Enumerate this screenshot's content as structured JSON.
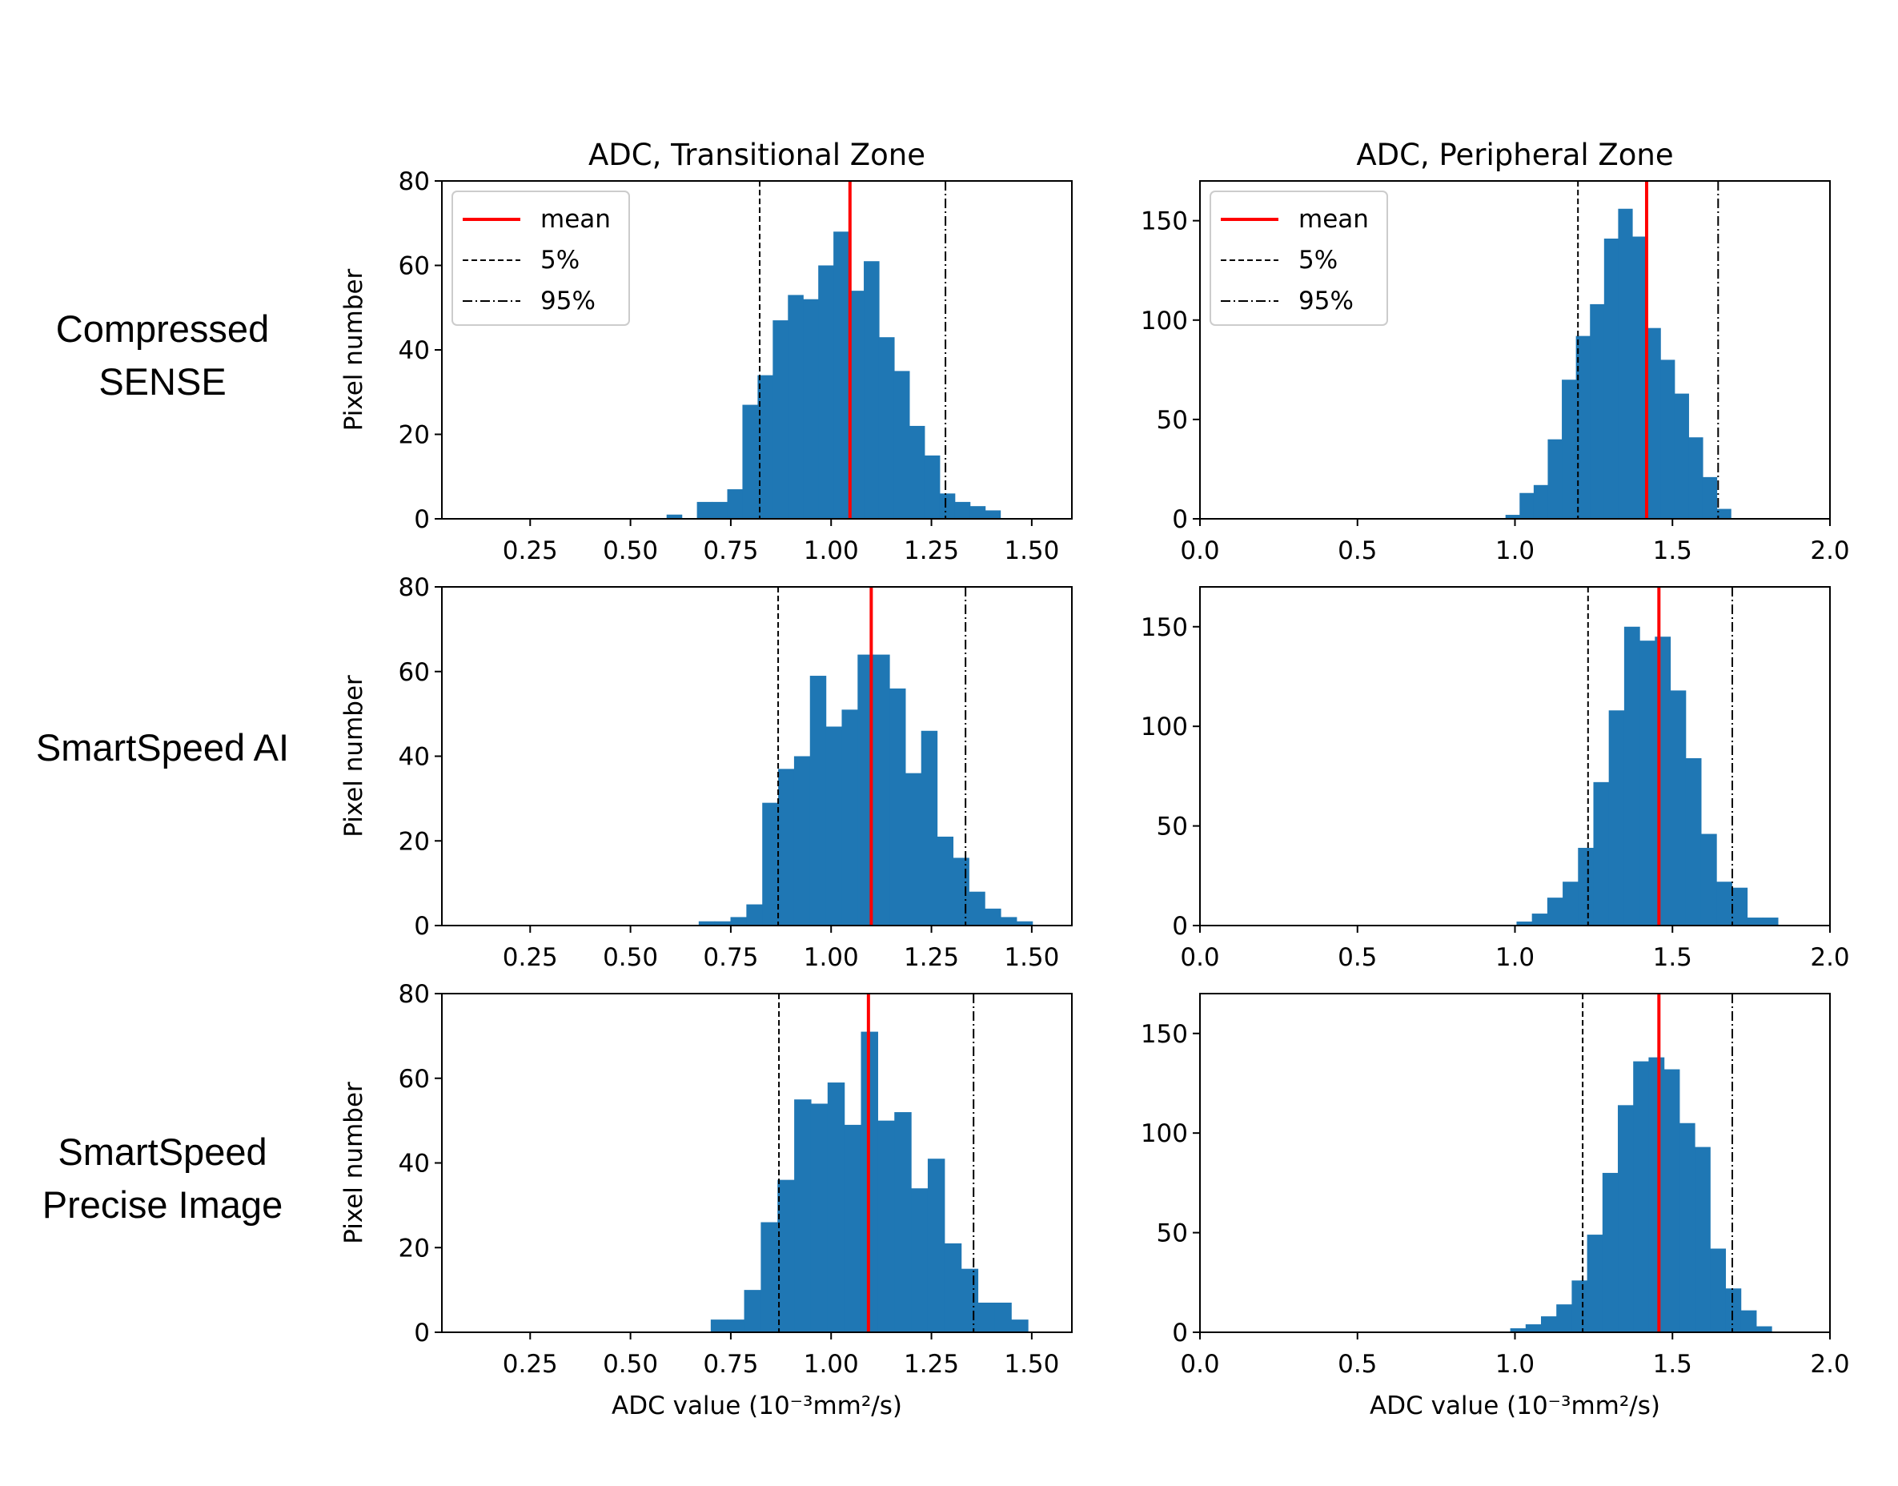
{
  "row_labels": [
    [
      "Compressed",
      "SENSE"
    ],
    [
      "SmartSpeed AI"
    ],
    [
      "SmartSpeed",
      "Precise Image"
    ]
  ],
  "legend": {
    "mean": "mean",
    "p5": "5%",
    "p95": "95%"
  },
  "colors": {
    "bar": "#1f77b4",
    "mean": "#ff0000",
    "percentile": "#000000"
  },
  "chart_data": [
    {
      "type": "bar",
      "title": "ADC, Transitional Zone",
      "xlabel": "",
      "ylabel": "Pixel number",
      "xlim": [
        0.03,
        1.6
      ],
      "ylim": [
        0,
        80
      ],
      "xticks": [
        "0.25",
        "0.50",
        "0.75",
        "1.00",
        "1.25",
        "1.50"
      ],
      "yticks": [
        "0",
        "20",
        "40",
        "60",
        "80"
      ],
      "bin_start": 0.59,
      "bin_width": 0.0378,
      "values": [
        1,
        0,
        4,
        4,
        7,
        27,
        34,
        47,
        53,
        52,
        60,
        68,
        54,
        61,
        43,
        35,
        22,
        15,
        6,
        4,
        3,
        2
      ],
      "mean": 1.047,
      "p5": 0.822,
      "p95": 1.285,
      "legend": true
    },
    {
      "type": "bar",
      "title": "ADC, Peripheral Zone",
      "xlabel": "",
      "ylabel": "",
      "xlim": [
        0,
        2
      ],
      "ylim": [
        0,
        170
      ],
      "xticks": [
        "0.0",
        "0.5",
        "1.0",
        "1.5",
        "2.0"
      ],
      "yticks": [
        "0",
        "50",
        "100",
        "150"
      ],
      "bin_start": 0.97,
      "bin_width": 0.0447,
      "values": [
        2,
        13,
        17,
        40,
        70,
        92,
        108,
        141,
        156,
        142,
        96,
        80,
        63,
        41,
        21,
        5
      ],
      "mean": 1.418,
      "p5": 1.2,
      "p95": 1.645,
      "legend": true
    },
    {
      "type": "bar",
      "title": "",
      "xlabel": "",
      "ylabel": "Pixel number",
      "xlim": [
        0.03,
        1.6
      ],
      "ylim": [
        0,
        80
      ],
      "xticks": [
        "0.25",
        "0.50",
        "0.75",
        "1.00",
        "1.25",
        "1.50"
      ],
      "yticks": [
        "0",
        "20",
        "40",
        "60",
        "80"
      ],
      "bin_start": 0.67,
      "bin_width": 0.0396,
      "values": [
        1,
        1,
        2,
        5,
        29,
        37,
        40,
        59,
        47,
        51,
        64,
        64,
        56,
        36,
        46,
        21,
        16,
        8,
        4,
        2,
        1
      ],
      "mean": 1.1,
      "p5": 0.868,
      "p95": 1.335,
      "legend": false
    },
    {
      "type": "bar",
      "title": "",
      "xlabel": "",
      "ylabel": "",
      "xlim": [
        0,
        2
      ],
      "ylim": [
        0,
        170
      ],
      "xticks": [
        "0.0",
        "0.5",
        "1.0",
        "1.5",
        "2.0"
      ],
      "yticks": [
        "0",
        "50",
        "100",
        "150"
      ],
      "bin_start": 1.005,
      "bin_width": 0.0488,
      "values": [
        2,
        6,
        14,
        22,
        39,
        72,
        108,
        150,
        143,
        145,
        118,
        84,
        46,
        22,
        19,
        4,
        4
      ],
      "mean": 1.457,
      "p5": 1.232,
      "p95": 1.69,
      "legend": false
    },
    {
      "type": "bar",
      "title": "",
      "xlabel": "ADC value (10⁻³mm²/s)",
      "ylabel": "Pixel number",
      "xlim": [
        0.03,
        1.6
      ],
      "ylim": [
        0,
        80
      ],
      "xticks": [
        "0.25",
        "0.50",
        "0.75",
        "1.00",
        "1.25",
        "1.50"
      ],
      "yticks": [
        "0",
        "20",
        "40",
        "60",
        "80"
      ],
      "bin_start": 0.7,
      "bin_width": 0.0416,
      "values": [
        3,
        3,
        10,
        26,
        36,
        55,
        54,
        59,
        49,
        71,
        50,
        52,
        34,
        41,
        21,
        15,
        7,
        7,
        3
      ],
      "mean": 1.093,
      "p5": 0.87,
      "p95": 1.355,
      "legend": false
    },
    {
      "type": "bar",
      "title": "",
      "xlabel": "ADC value (10⁻³mm²/s)",
      "ylabel": "",
      "xlim": [
        0,
        2
      ],
      "ylim": [
        0,
        170
      ],
      "xticks": [
        "0.0",
        "0.5",
        "1.0",
        "1.5",
        "2.0"
      ],
      "yticks": [
        "0",
        "50",
        "100",
        "150"
      ],
      "bin_start": 0.985,
      "bin_width": 0.0488,
      "values": [
        2,
        4,
        8,
        14,
        26,
        49,
        80,
        114,
        136,
        138,
        132,
        105,
        93,
        42,
        22,
        11,
        3
      ],
      "mean": 1.457,
      "p5": 1.215,
      "p95": 1.69,
      "legend": false
    }
  ]
}
